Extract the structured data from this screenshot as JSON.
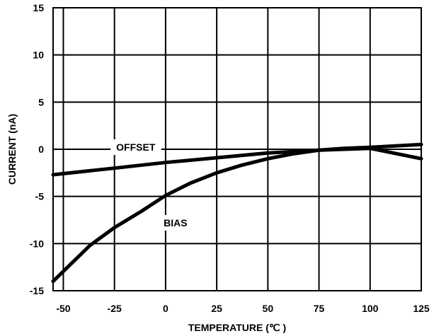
{
  "chart_data": {
    "type": "line",
    "xlabel": "TEMPERATURE (℃ )",
    "ylabel": "CURRENT (nA)",
    "xlim": [
      -55,
      125
    ],
    "ylim": [
      -15,
      15
    ],
    "xticks": [
      -50,
      -25,
      0,
      25,
      50,
      75,
      100,
      125
    ],
    "yticks": [
      15,
      10,
      5,
      0,
      -5,
      -10,
      -15
    ],
    "grid": true,
    "series": [
      {
        "name": "OFFSET",
        "x": [
          -55,
          -25,
          0,
          25,
          50,
          75,
          100,
          125
        ],
        "y": [
          -2.7,
          -2.0,
          -1.4,
          -0.9,
          -0.4,
          -0.1,
          0.1,
          -1.0
        ]
      },
      {
        "name": "BIAS",
        "x": [
          -55,
          -37,
          -25,
          -12,
          0,
          12,
          25,
          37,
          50,
          62,
          75,
          87,
          100,
          125
        ],
        "y": [
          -14.0,
          -10.2,
          -8.3,
          -6.6,
          -4.9,
          -3.6,
          -2.5,
          -1.7,
          -1.0,
          -0.5,
          -0.1,
          0.1,
          0.2,
          0.5
        ]
      }
    ]
  }
}
